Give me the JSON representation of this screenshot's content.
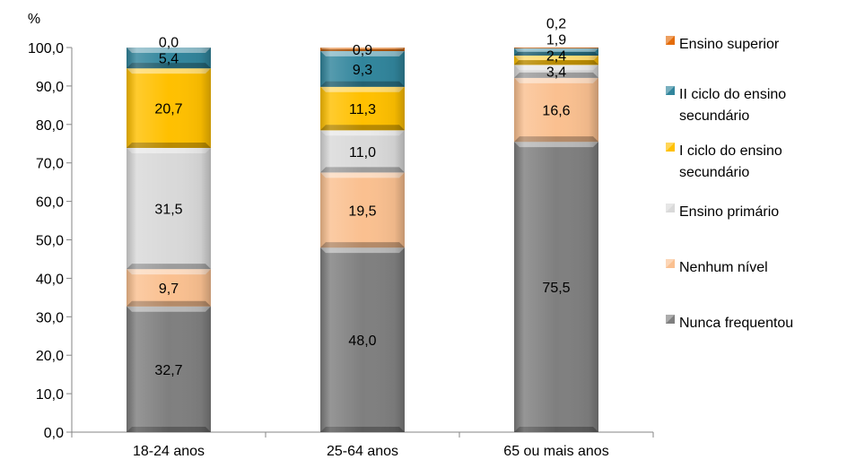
{
  "chart_data": {
    "type": "bar",
    "stacked": true,
    "unit_label": "%",
    "categories": [
      "18-24 anos",
      "25-64 anos",
      "65 ou mais anos"
    ],
    "ylim": [
      0,
      100
    ],
    "yticks": [
      "0,0",
      "10,0",
      "20,0",
      "30,0",
      "40,0",
      "50,0",
      "60,0",
      "70,0",
      "80,0",
      "90,0",
      "100,0"
    ],
    "grid": false,
    "legend_position": "right",
    "series": [
      {
        "name": "Nunca frequentou",
        "color": "#7f7f7f",
        "values": [
          32.7,
          48.0,
          75.5
        ],
        "labels": [
          "32,7",
          "48,0",
          "75,5"
        ]
      },
      {
        "name": "Nenhum nível",
        "color": "#fac090",
        "values": [
          9.7,
          19.5,
          16.6
        ],
        "labels": [
          "9,7",
          "19,5",
          "16,6"
        ]
      },
      {
        "name": "Ensino primário",
        "color": "#d9d9d9",
        "values": [
          31.5,
          11.0,
          3.4
        ],
        "labels": [
          "31,5",
          "11,0",
          "3,4"
        ]
      },
      {
        "name": "I ciclo do ensino secundário",
        "legend_lines": [
          "I ciclo do ensino",
          "secundário"
        ],
        "color": "#ffc000",
        "values": [
          20.7,
          11.3,
          2.4
        ],
        "labels": [
          "20,7",
          "11,3",
          "2,4"
        ]
      },
      {
        "name": "II ciclo do ensino secundário",
        "legend_lines": [
          "II ciclo do ensino",
          "secundário"
        ],
        "color": "#31859c",
        "values": [
          5.4,
          9.3,
          1.9
        ],
        "labels": [
          "5,4",
          "9,3",
          "1,9"
        ]
      },
      {
        "name": "Ensino superior",
        "color": "#e46c0a",
        "values": [
          0.0,
          0.9,
          0.2
        ],
        "labels": [
          "0,0",
          "0,9",
          "0,2"
        ]
      }
    ]
  }
}
